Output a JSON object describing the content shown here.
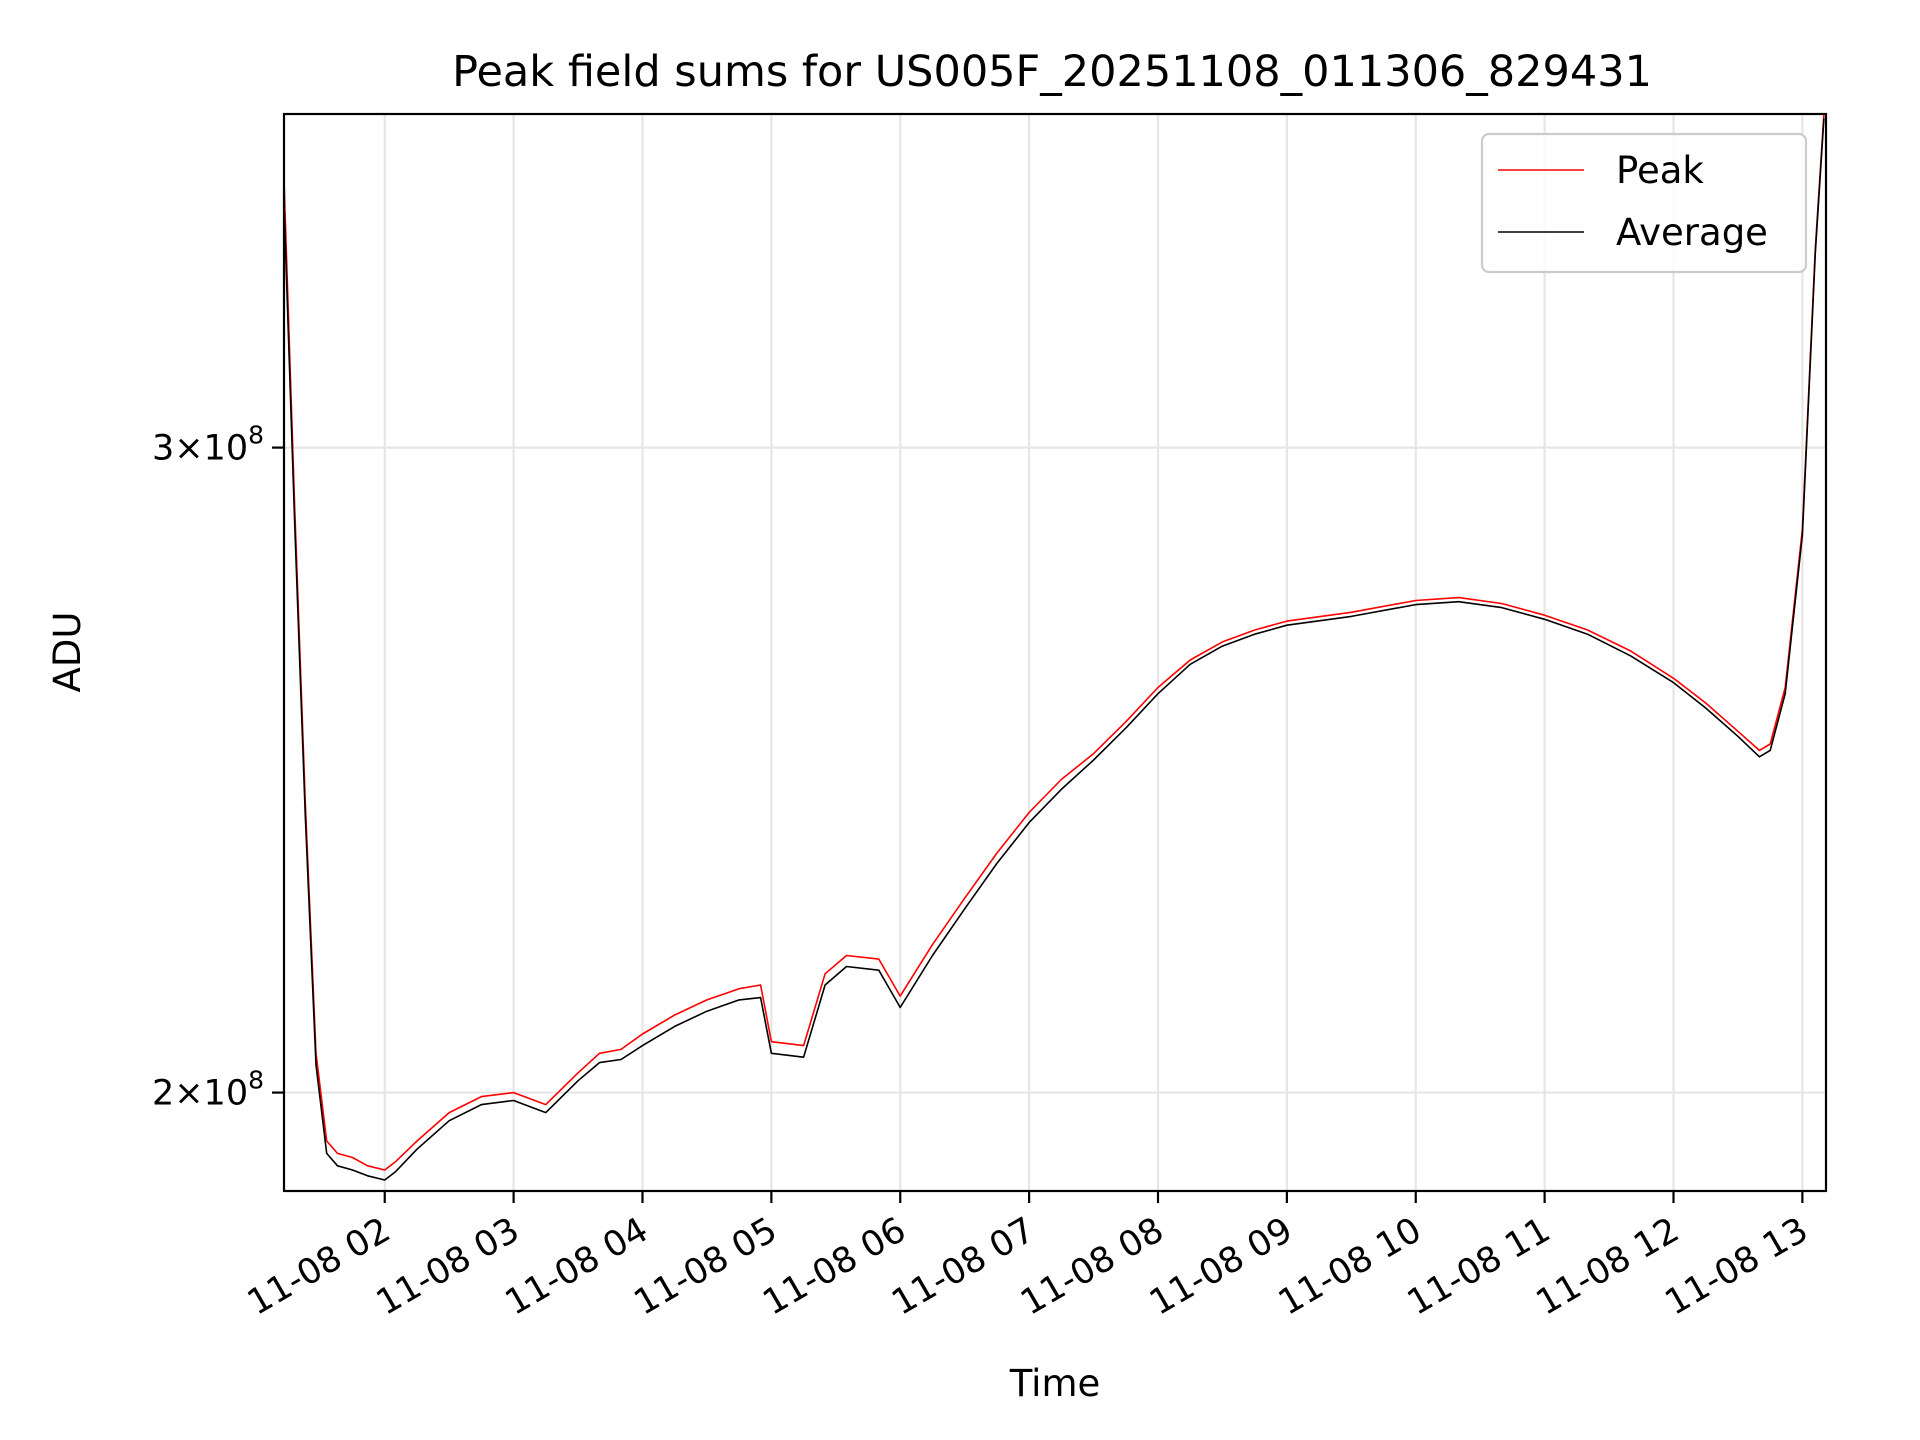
{
  "chart_data": {
    "type": "line",
    "title": "Peak field sums for US005F_20251108_011306_829431",
    "xlabel": "Time",
    "ylabel": "ADU",
    "y_scale": "log",
    "ylim": [
      188000000,
      370000000
    ],
    "xlim": [
      "2025-11-08 01:13:06",
      "2025-11-08 13:11:00"
    ],
    "grid": true,
    "legend_position": "top-right",
    "x_ticks": [
      {
        "value": "2025-11-08 02:00",
        "label": "11-08 02"
      },
      {
        "value": "2025-11-08 03:00",
        "label": "11-08 03"
      },
      {
        "value": "2025-11-08 04:00",
        "label": "11-08 04"
      },
      {
        "value": "2025-11-08 05:00",
        "label": "11-08 05"
      },
      {
        "value": "2025-11-08 06:00",
        "label": "11-08 06"
      },
      {
        "value": "2025-11-08 07:00",
        "label": "11-08 07"
      },
      {
        "value": "2025-11-08 08:00",
        "label": "11-08 08"
      },
      {
        "value": "2025-11-08 09:00",
        "label": "11-08 09"
      },
      {
        "value": "2025-11-08 10:00",
        "label": "11-08 10"
      },
      {
        "value": "2025-11-08 11:00",
        "label": "11-08 11"
      },
      {
        "value": "2025-11-08 12:00",
        "label": "11-08 12"
      },
      {
        "value": "2025-11-08 13:00",
        "label": "11-08 13"
      }
    ],
    "y_ticks": [
      {
        "value": 200000000,
        "label_mant": "2",
        "label_exp": "8"
      },
      {
        "value": 300000000,
        "label_mant": "3",
        "label_exp": "8"
      }
    ],
    "series": [
      {
        "name": "Peak",
        "color": "#ff0000",
        "x": [
          "2025-11-08 01:13",
          "2025-11-08 01:18",
          "2025-11-08 01:23",
          "2025-11-08 01:28",
          "2025-11-08 01:33",
          "2025-11-08 01:38",
          "2025-11-08 01:45",
          "2025-11-08 01:52",
          "2025-11-08 02:00",
          "2025-11-08 02:05",
          "2025-11-08 02:15",
          "2025-11-08 02:30",
          "2025-11-08 02:45",
          "2025-11-08 03:00",
          "2025-11-08 03:15",
          "2025-11-08 03:30",
          "2025-11-08 03:40",
          "2025-11-08 03:50",
          "2025-11-08 04:00",
          "2025-11-08 04:15",
          "2025-11-08 04:30",
          "2025-11-08 04:45",
          "2025-11-08 04:55",
          "2025-11-08 05:00",
          "2025-11-08 05:15",
          "2025-11-08 05:25",
          "2025-11-08 05:35",
          "2025-11-08 05:50",
          "2025-11-08 06:00",
          "2025-11-08 06:15",
          "2025-11-08 06:30",
          "2025-11-08 06:45",
          "2025-11-08 07:00",
          "2025-11-08 07:15",
          "2025-11-08 07:30",
          "2025-11-08 07:45",
          "2025-11-08 08:00",
          "2025-11-08 08:15",
          "2025-11-08 08:30",
          "2025-11-08 08:45",
          "2025-11-08 09:00",
          "2025-11-08 09:30",
          "2025-11-08 10:00",
          "2025-11-08 10:20",
          "2025-11-08 10:40",
          "2025-11-08 11:00",
          "2025-11-08 11:20",
          "2025-11-08 11:40",
          "2025-11-08 12:00",
          "2025-11-08 12:15",
          "2025-11-08 12:30",
          "2025-11-08 12:40",
          "2025-11-08 12:45",
          "2025-11-08 12:52",
          "2025-11-08 13:00",
          "2025-11-08 13:06",
          "2025-11-08 13:10"
        ],
        "y": [
          355000000,
          290000000,
          240000000,
          205000000,
          194000000,
          192500000,
          192000000,
          191000000,
          190500000,
          191500000,
          194000000,
          197500000,
          199500000,
          200000000,
          198500000,
          202500000,
          205000000,
          205500000,
          207500000,
          210000000,
          212000000,
          213500000,
          214000000,
          206500000,
          206000000,
          215500000,
          218000000,
          217500000,
          212500000,
          219500000,
          226000000,
          232500000,
          238500000,
          243500000,
          247500000,
          252500000,
          258000000,
          262500000,
          265500000,
          267500000,
          269000000,
          270500000,
          272500000,
          273000000,
          272000000,
          270000000,
          267500000,
          264000000,
          259500000,
          255500000,
          251000000,
          248000000,
          249000000,
          258000000,
          285000000,
          340000000,
          370000000
        ]
      },
      {
        "name": "Average",
        "color": "#000000",
        "x": [
          "2025-11-08 01:13",
          "2025-11-08 01:18",
          "2025-11-08 01:23",
          "2025-11-08 01:28",
          "2025-11-08 01:33",
          "2025-11-08 01:38",
          "2025-11-08 01:45",
          "2025-11-08 01:52",
          "2025-11-08 02:00",
          "2025-11-08 02:05",
          "2025-11-08 02:15",
          "2025-11-08 02:30",
          "2025-11-08 02:45",
          "2025-11-08 03:00",
          "2025-11-08 03:15",
          "2025-11-08 03:30",
          "2025-11-08 03:40",
          "2025-11-08 03:50",
          "2025-11-08 04:00",
          "2025-11-08 04:15",
          "2025-11-08 04:30",
          "2025-11-08 04:45",
          "2025-11-08 04:55",
          "2025-11-08 05:00",
          "2025-11-08 05:15",
          "2025-11-08 05:25",
          "2025-11-08 05:35",
          "2025-11-08 05:50",
          "2025-11-08 06:00",
          "2025-11-08 06:15",
          "2025-11-08 06:30",
          "2025-11-08 06:45",
          "2025-11-08 07:00",
          "2025-11-08 07:15",
          "2025-11-08 07:30",
          "2025-11-08 07:45",
          "2025-11-08 08:00",
          "2025-11-08 08:15",
          "2025-11-08 08:30",
          "2025-11-08 08:45",
          "2025-11-08 09:00",
          "2025-11-08 09:30",
          "2025-11-08 10:00",
          "2025-11-08 10:20",
          "2025-11-08 10:40",
          "2025-11-08 11:00",
          "2025-11-08 11:20",
          "2025-11-08 11:40",
          "2025-11-08 12:00",
          "2025-11-08 12:15",
          "2025-11-08 12:30",
          "2025-11-08 12:40",
          "2025-11-08 12:45",
          "2025-11-08 12:52",
          "2025-11-08 13:00",
          "2025-11-08 13:06",
          "2025-11-08 13:10"
        ],
        "y": [
          350000000,
          287000000,
          238000000,
          203500000,
          192500000,
          191000000,
          190500000,
          189800000,
          189300000,
          190300000,
          193000000,
          196500000,
          198500000,
          199000000,
          197500000,
          201500000,
          203800000,
          204200000,
          206000000,
          208500000,
          210500000,
          212000000,
          212300000,
          205000000,
          204500000,
          214000000,
          216500000,
          216000000,
          211000000,
          218000000,
          224500000,
          231000000,
          237000000,
          242000000,
          246500000,
          251500000,
          257000000,
          261800000,
          264800000,
          266800000,
          268300000,
          269800000,
          271800000,
          272300000,
          271300000,
          269300000,
          266800000,
          263200000,
          258800000,
          254700000,
          250200000,
          247000000,
          248000000,
          257000000,
          284000000,
          339000000,
          369000000
        ]
      }
    ]
  }
}
